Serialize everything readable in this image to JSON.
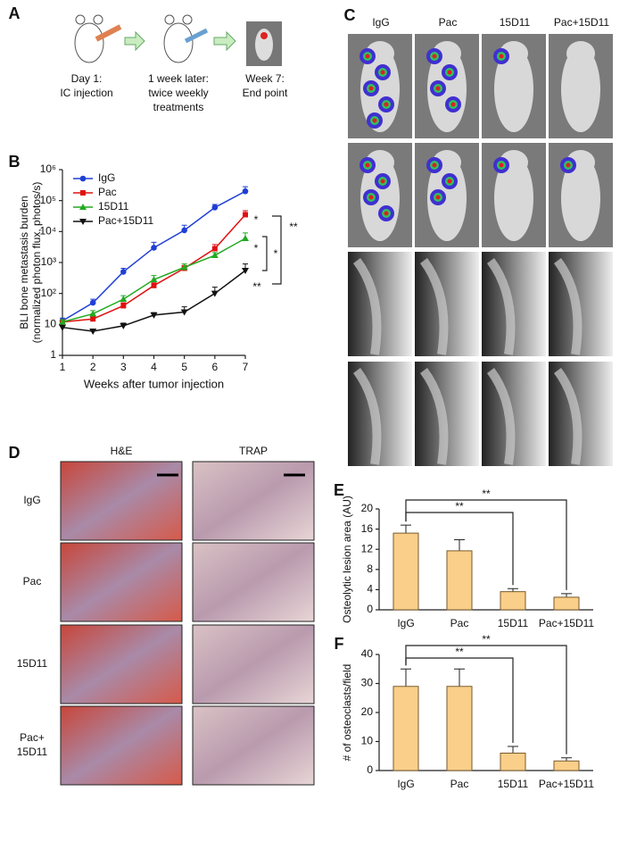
{
  "panel_a": {
    "label": "A",
    "steps": [
      [
        "Day 1:",
        "IC injection"
      ],
      [
        "1 week later:",
        "twice weekly",
        "treatments"
      ],
      [
        "Week 7:",
        "End point"
      ]
    ]
  },
  "panel_c": {
    "label": "C",
    "columns": [
      "IgG",
      "Pac",
      "15D11",
      "Pac+15D11"
    ]
  },
  "panel_d": {
    "label": "D",
    "columns": [
      "H&E",
      "TRAP"
    ],
    "rows": [
      [
        "IgG"
      ],
      [
        "Pac"
      ],
      [
        "15D11"
      ],
      [
        "Pac+",
        "15D11"
      ]
    ]
  },
  "chart_data": [
    {
      "label": "B",
      "type": "line",
      "log_y": true,
      "ylabel": [
        "BLI bone metastasis  burden",
        "(normalized photon flux, photos/s)"
      ],
      "xlabel": "Weeks after tumor injection",
      "x": [
        1,
        2,
        3,
        4,
        5,
        6,
        7
      ],
      "xlim": [
        1,
        7
      ],
      "xticks": [
        1,
        2,
        3,
        4,
        5,
        6,
        7
      ],
      "ylim": [
        1,
        1000000
      ],
      "yticks": [
        1,
        10,
        {
          "value": 100,
          "label": "10²"
        },
        {
          "value": 1000,
          "label": "10³"
        },
        {
          "value": 10000,
          "label": "10⁴"
        },
        {
          "value": 100000,
          "label": "10⁵"
        },
        {
          "value": 1000000,
          "label": "10⁶"
        }
      ],
      "series": [
        {
          "name": "IgG",
          "color": "#1f3fd6",
          "marker": "circle",
          "values": [
            13,
            50,
            500,
            3000,
            11000,
            60000,
            200000
          ],
          "errors": [
            3,
            15,
            150,
            1500,
            5000,
            15000,
            80000
          ]
        },
        {
          "name": "Pac",
          "color": "#e01010",
          "marker": "square",
          "values": [
            12,
            15,
            40,
            180,
            650,
            2800,
            35000
          ],
          "errors": [
            2,
            3,
            10,
            40,
            150,
            1000,
            12000
          ]
        },
        {
          "name": "15D11",
          "color": "#22aa22",
          "marker": "triangle",
          "values": [
            12,
            22,
            65,
            280,
            700,
            1700,
            6000
          ],
          "errors": [
            2,
            6,
            20,
            100,
            200,
            400,
            3000
          ]
        },
        {
          "name": "Pac+15D11",
          "color": "#111111",
          "marker": "down",
          "values": [
            8,
            6,
            9,
            20,
            25,
            100,
            550
          ],
          "errors": [
            1,
            1,
            2,
            4,
            12,
            60,
            350
          ]
        }
      ],
      "annotations": [
        "*",
        "*",
        "**",
        "*",
        "**"
      ]
    },
    {
      "label": "E",
      "type": "bar",
      "ylabel": "Osteolytic lesion area (AU)",
      "categories": [
        "IgG",
        "Pac",
        "15D11",
        "Pac+15D11"
      ],
      "values": [
        15.2,
        11.7,
        3.6,
        2.5
      ],
      "errors": [
        1.6,
        2.2,
        0.6,
        0.7
      ],
      "color": "#f9cf8a",
      "ylim": [
        0,
        20
      ],
      "yticks": [
        0,
        4,
        8,
        12,
        16,
        20
      ],
      "annotations": [
        "**",
        "**"
      ]
    },
    {
      "label": "F",
      "type": "bar",
      "ylabel": "# of osteoclasts/field",
      "categories": [
        "IgG",
        "Pac",
        "15D11",
        "Pac+15D11"
      ],
      "values": [
        29,
        29,
        6,
        3.3
      ],
      "errors": [
        6,
        6,
        2.3,
        1.1
      ],
      "color": "#f9cf8a",
      "ylim": [
        0,
        40
      ],
      "yticks": [
        0,
        10,
        20,
        30,
        40
      ],
      "annotations": [
        "**",
        "**"
      ]
    }
  ]
}
